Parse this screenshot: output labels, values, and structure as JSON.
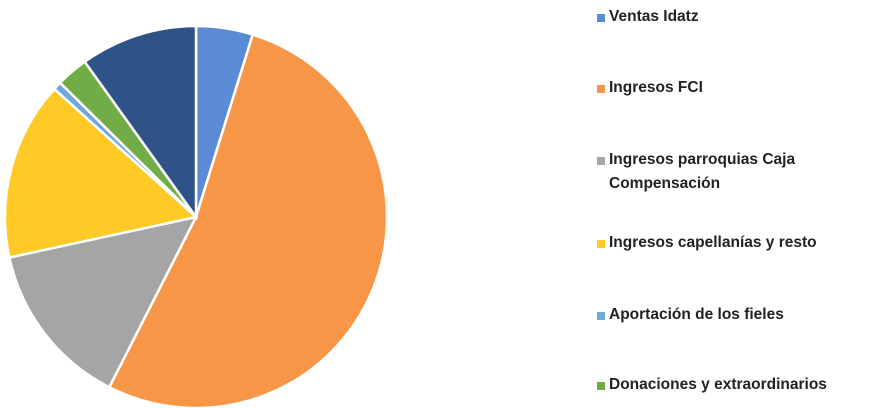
{
  "chart_data": {
    "type": "pie",
    "categories": [
      "Ventas Idatz",
      "Ingresos FCI",
      "Ingresos parroquias Caja Compensación",
      "Ingresos capellanías y resto",
      "Aportación de los fieles",
      "Donaciones y extraordinarios",
      null
    ],
    "values": [
      4.8,
      52.7,
      14.1,
      15.1,
      0.7,
      2.7,
      9.9
    ],
    "colors": [
      "#5b8ad6",
      "#f79646",
      "#a5a5a5",
      "#ffc926",
      "#6fa8dc",
      "#70ad47",
      "#2f5387"
    ],
    "legend": "right"
  }
}
